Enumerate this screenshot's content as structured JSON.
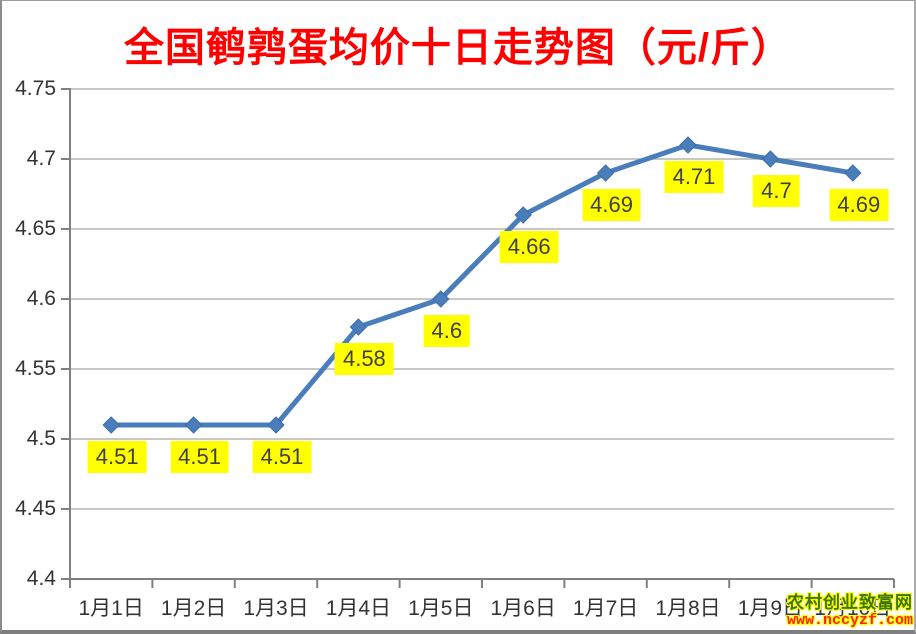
{
  "chart_data": {
    "type": "line",
    "title": "全国鹌鹑蛋均价十日走势图（元/斤）",
    "categories": [
      "1月1日",
      "1月2日",
      "1月3日",
      "1月4日",
      "1月5日",
      "1月6日",
      "1月7日",
      "1月8日",
      "1月9日",
      "1月10日"
    ],
    "values": [
      4.51,
      4.51,
      4.51,
      4.58,
      4.6,
      4.66,
      4.69,
      4.71,
      4.7,
      4.69
    ],
    "data_labels": [
      "4.51",
      "4.51",
      "4.51",
      "4.58",
      "4.6",
      "4.66",
      "4.69",
      "4.71",
      "4.7",
      "4.69"
    ],
    "xlabel": "",
    "ylabel": "",
    "ylim": [
      4.4,
      4.75
    ],
    "ytick_values": [
      4.75,
      4.7,
      4.65,
      4.6,
      4.55,
      4.5,
      4.45,
      4.4
    ],
    "ytick_labels": [
      "4.75",
      "4.7",
      "4.65",
      "4.6",
      "4.55",
      "4.5",
      "4.45",
      "4.4"
    ],
    "grid": true,
    "legend": "none",
    "marker": "diamond",
    "colors": {
      "line": "#4a7ebb",
      "marker": "#4a7ebb",
      "marker_edge": "#3c6da8",
      "label_bg": "#ffff00",
      "label_text": "#404040",
      "title": "#ff0000",
      "grid": "#a6a6a6",
      "axis": "#808080",
      "tick_label": "#333333"
    }
  },
  "watermark": {
    "site_name": "农村创业致富网",
    "site_url": "www.nccyzf.com",
    "name_color": "#3c7600",
    "url_color": "#ff2400",
    "glow_color": "#ffff00"
  }
}
